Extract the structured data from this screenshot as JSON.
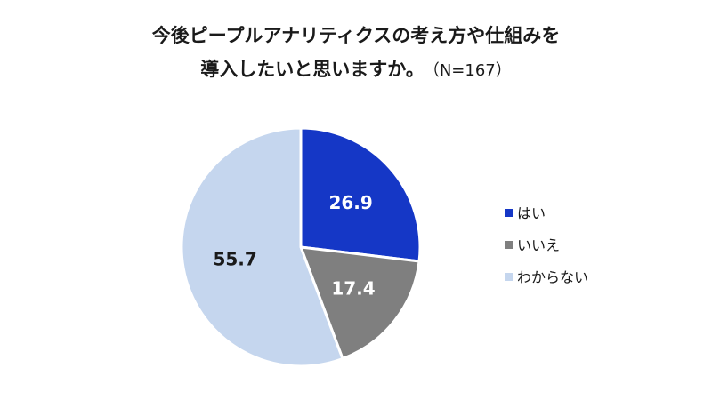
{
  "title_line1": "今後ピープルアナリティクスの考え方や仕組みを",
  "title_line2": "導入したいと思いますか。",
  "title_note": "（N=167）",
  "chart_data": {
    "type": "pie",
    "categories": [
      "はい",
      "いいえ",
      "わからない"
    ],
    "values": [
      26.9,
      17.4,
      55.7
    ],
    "colors": [
      "#1537c6",
      "#7f7f7f",
      "#c5d6ee"
    ],
    "label_colors": [
      "#ffffff",
      "#ffffff",
      "#1a1a1a"
    ],
    "start_angle_deg": 0,
    "direction": "clockwise",
    "legend_position": "right"
  }
}
